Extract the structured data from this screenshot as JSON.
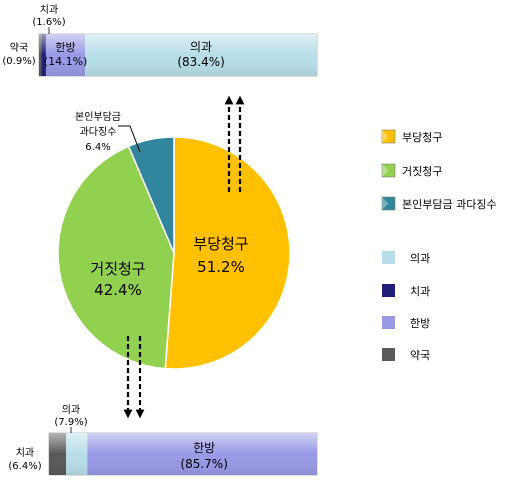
{
  "chart_data": [
    {
      "type": "pie",
      "categories": [
        "부당청구",
        "거짓청구",
        "본인부담금 과다징수"
      ],
      "values": [
        51.2,
        42.4,
        6.4
      ],
      "value_labels": [
        "51.2%",
        "42.4%",
        "6.4%"
      ],
      "slice_labels": [
        "부당청구",
        "거짓청구",
        "본인부담금 과다징수"
      ],
      "callout_label_lines": [
        "본인부담금",
        "과다징수",
        "6.4%"
      ],
      "colors": [
        "#ffc000",
        "#92d050",
        "#31859c"
      ],
      "legend_position": "right"
    },
    {
      "type": "bar",
      "orientation": "horizontal-stacked",
      "linked_slice": "부당청구",
      "categories": [
        "약국",
        "치과",
        "한방",
        "의과"
      ],
      "values": [
        0.9,
        1.6,
        14.1,
        83.4
      ],
      "labels": [
        [
          "약국",
          "(0.9%)"
        ],
        [
          "치과",
          "(1.6%)"
        ],
        [
          "한방",
          "(14.1%)"
        ],
        [
          "의과",
          "(83.4%)"
        ]
      ],
      "colors": [
        "#595959",
        "#1f1f7a",
        "#9999e6",
        "#b7dee8"
      ]
    },
    {
      "type": "bar",
      "orientation": "horizontal-stacked",
      "linked_slice": "거짓청구",
      "categories": [
        "치과",
        "의과",
        "한방"
      ],
      "values": [
        6.4,
        7.9,
        85.7
      ],
      "labels": [
        [
          "치과",
          "(6.4%)"
        ],
        [
          "의과",
          "(7.9%)"
        ],
        [
          "한방",
          "(85.7%)"
        ]
      ],
      "colors": [
        "#595959",
        "#b7dee8",
        "#9999e6"
      ]
    }
  ],
  "legend": {
    "pie_items": [
      {
        "label": "부당청구",
        "color": "#ffc000"
      },
      {
        "label": "거짓청구",
        "color": "#92d050"
      },
      {
        "label": "본인부담금 과다징수",
        "color": "#31859c"
      }
    ],
    "bar_items": [
      {
        "label": "의과",
        "color": "#b7dee8"
      },
      {
        "label": "치과",
        "color": "#1f1f7a"
      },
      {
        "label": "한방",
        "color": "#9999e6"
      },
      {
        "label": "약국",
        "color": "#595959"
      }
    ]
  }
}
